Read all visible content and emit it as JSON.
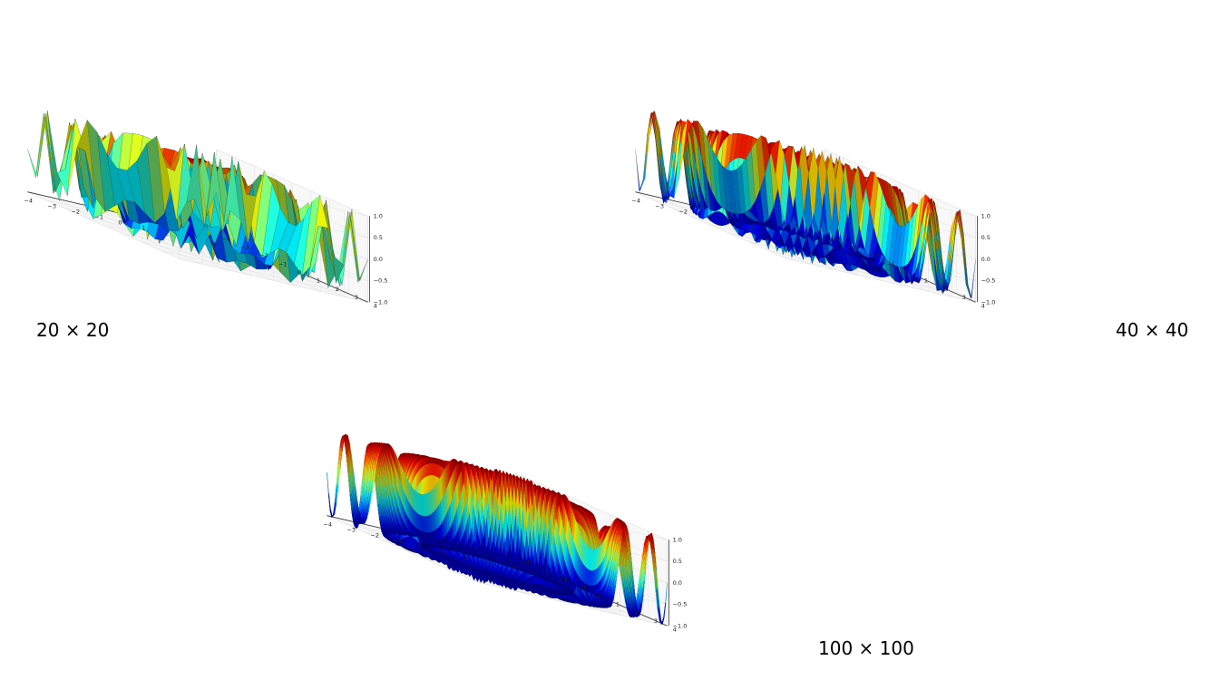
{
  "chart_data": [
    {
      "type": "surface",
      "caption": "20 × 20",
      "grid_resolution": 20,
      "colormap": "jet",
      "x_ticks": [
        "−4",
        "−3",
        "−2",
        "−1",
        "0",
        "1",
        "2",
        "3",
        "4"
      ],
      "y_ticks": [
        "−4",
        "−3",
        "−2",
        "−1",
        "0",
        "1",
        "2",
        "3",
        "4"
      ],
      "z_ticks": [
        "−1.0",
        "−0.5",
        "0.0",
        "0.5",
        "1.0"
      ],
      "xlim": [
        -4,
        4
      ],
      "ylim": [
        -4,
        4
      ],
      "zlim": [
        -1,
        1
      ],
      "grid": true
    },
    {
      "type": "surface",
      "caption": "40 × 40",
      "grid_resolution": 40,
      "colormap": "jet",
      "x_ticks": [
        "−4",
        "−3",
        "−2",
        "−1",
        "0",
        "1",
        "2",
        "3",
        "4"
      ],
      "y_ticks": [
        "−4",
        "−3",
        "−2",
        "−1",
        "0",
        "1",
        "2",
        "3",
        "4"
      ],
      "z_ticks": [
        "−1.0",
        "−0.5",
        "0.0",
        "0.5",
        "1.0"
      ],
      "xlim": [
        -4,
        4
      ],
      "ylim": [
        -4,
        4
      ],
      "zlim": [
        -1,
        1
      ],
      "grid": true
    },
    {
      "type": "surface",
      "caption": "100 × 100",
      "grid_resolution": 100,
      "colormap": "jet",
      "x_ticks": [
        "−4",
        "−3",
        "−2",
        "−1",
        "0",
        "1",
        "2",
        "3",
        "4"
      ],
      "y_ticks": [
        "−4",
        "−3",
        "−2",
        "−1",
        "0",
        "1",
        "2",
        "3",
        "4"
      ],
      "z_ticks": [
        "−1.0",
        "−0.5",
        "0.0",
        "0.5",
        "1.0"
      ],
      "xlim": [
        -4,
        4
      ],
      "ylim": [
        -4,
        4
      ],
      "zlim": [
        -1,
        1
      ],
      "grid": true
    }
  ]
}
